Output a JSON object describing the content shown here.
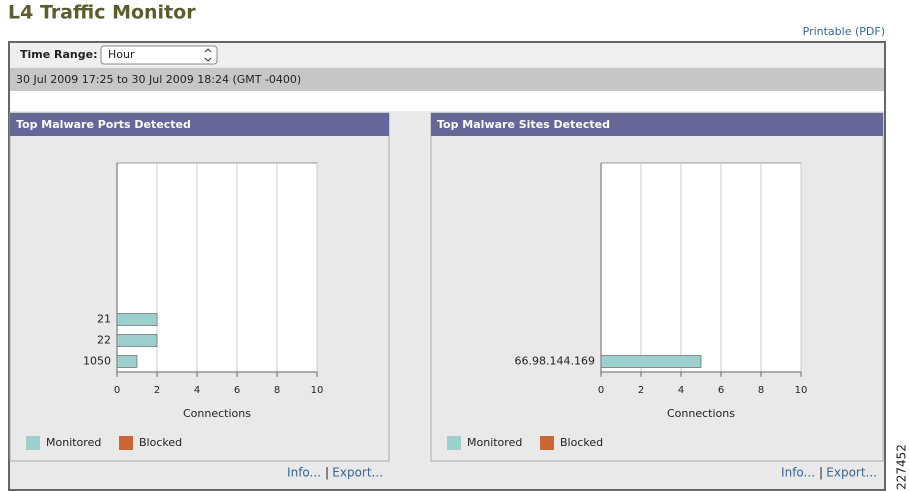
{
  "header": {
    "title": "L4 Traffic Monitor",
    "printable_link": "Printable (PDF)",
    "side_number": "227452"
  },
  "controls": {
    "time_range_label": "Time Range:",
    "time_range_value": "Hour",
    "date_range": "30 Jul 2009 17:25 to 30 Jul 2009 18:24 (GMT -0400)"
  },
  "chart_data": [
    {
      "type": "hbar",
      "title": "Top Malware Ports Detected",
      "categories": [
        "21",
        "22",
        "1050"
      ],
      "series": [
        {
          "name": "Monitored",
          "color": "#9ecfcf",
          "values": [
            2,
            2,
            1
          ]
        },
        {
          "name": "Blocked",
          "color": "#cc6633",
          "values": [
            0,
            0,
            0
          ]
        }
      ],
      "xlabel": "Connections",
      "xlim": [
        0,
        10
      ],
      "xticks": [
        0,
        2,
        4,
        6,
        8,
        10
      ],
      "grid": true,
      "legend": "bottom-left"
    },
    {
      "type": "hbar",
      "title": "Top Malware Sites Detected",
      "categories": [
        "66.98.144.169"
      ],
      "series": [
        {
          "name": "Monitored",
          "color": "#9ecfcf",
          "values": [
            5
          ]
        },
        {
          "name": "Blocked",
          "color": "#cc6633",
          "values": [
            0
          ]
        }
      ],
      "xlabel": "Connections",
      "xlim": [
        0,
        10
      ],
      "xticks": [
        0,
        2,
        4,
        6,
        8,
        10
      ],
      "grid": true,
      "legend": "bottom-left"
    }
  ],
  "panels": [
    {
      "links": [
        "Info...",
        "Export..."
      ]
    },
    {
      "links": [
        "Info...",
        "Export..."
      ]
    }
  ]
}
